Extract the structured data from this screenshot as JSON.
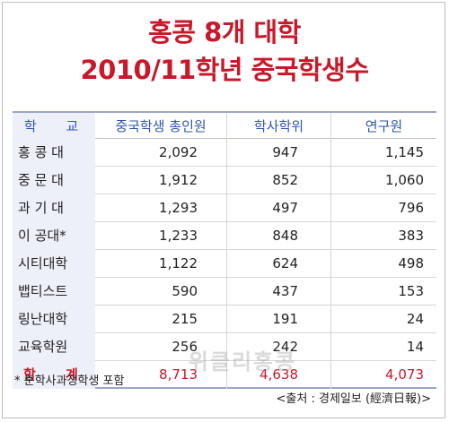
{
  "title": {
    "line1": "홍콩 8개 대학",
    "line2": "2010/11학년 중국학생수"
  },
  "table": {
    "headers": [
      "학 교",
      "중국학생 총인원",
      "학사학위",
      "연구원"
    ],
    "rows": [
      [
        "홍 콩 대",
        "2,092",
        "947",
        "1,145"
      ],
      [
        "중 문 대",
        "1,912",
        "852",
        "1,060"
      ],
      [
        "과 기 대",
        "1,293",
        "497",
        "796"
      ],
      [
        "이 공대*",
        "1,233",
        "848",
        "383"
      ],
      [
        "시티대학",
        "1,122",
        "624",
        "498"
      ],
      [
        "뱁티스트",
        "590",
        "437",
        "153"
      ],
      [
        "링난대학",
        "215",
        "191",
        "24"
      ],
      [
        "교육학원",
        "256",
        "242",
        "14"
      ]
    ],
    "total": [
      "합 계",
      "8,713",
      "4,638",
      "4,073"
    ]
  },
  "footnote": "* 준학사과정학생 포함",
  "source": "<출처 : 경제일보 (經濟日報)>",
  "watermark": "위클리홍콩",
  "colors": {
    "title": "#c8182a",
    "header_text": "#2e56b0",
    "first_column_bg": "#edf0f8",
    "total_text": "#c8182a"
  }
}
